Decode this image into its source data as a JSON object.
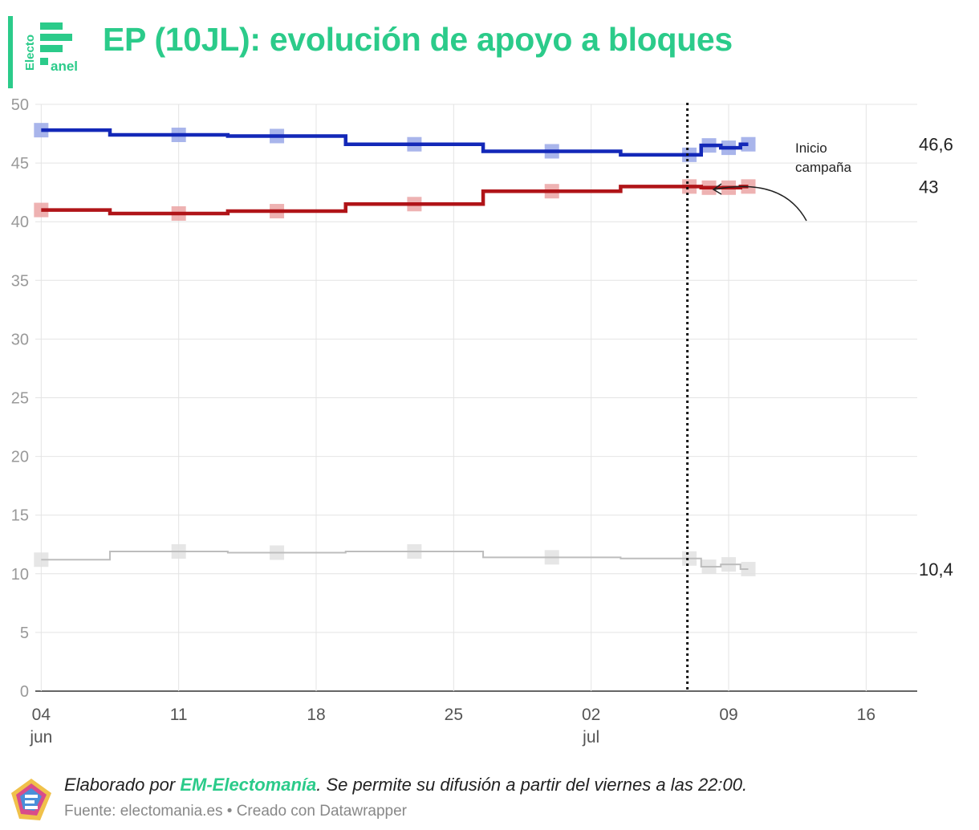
{
  "header": {
    "title": "EP (10JL): evolución de apoyo a bloques",
    "logo_text_top": "Electo",
    "logo_text_bottom": "anel"
  },
  "colors": {
    "accent": "#2bcb8a",
    "blue_line": "#1328b8",
    "blue_marker": "#9aa8e8",
    "red_line": "#b01418",
    "red_marker": "#eba4a4",
    "gray_line": "#bdbdbd",
    "gray_marker": "#e2e2e2"
  },
  "chart_data": {
    "type": "line",
    "title": "EP (10JL): evolución de apoyo a bloques",
    "xlabel": "",
    "ylabel": "",
    "ylim": [
      0,
      50
    ],
    "yticks": [
      0,
      5,
      10,
      15,
      20,
      25,
      30,
      35,
      40,
      45,
      50
    ],
    "x_domain_days": [
      -0.3,
      44.6
    ],
    "x_note": "x values are days since 4 jun",
    "xticks": [
      {
        "day": 0,
        "label": "04",
        "sublabel": "jun"
      },
      {
        "day": 7,
        "label": "11",
        "sublabel": ""
      },
      {
        "day": 14,
        "label": "18",
        "sublabel": ""
      },
      {
        "day": 21,
        "label": "25",
        "sublabel": ""
      },
      {
        "day": 28,
        "label": "02",
        "sublabel": "jul"
      },
      {
        "day": 35,
        "label": "09",
        "sublabel": ""
      },
      {
        "day": 42,
        "label": "16",
        "sublabel": ""
      }
    ],
    "series": [
      {
        "name": "blue",
        "end_label": "46,6",
        "steps": [
          [
            0,
            47.8
          ],
          [
            3.5,
            47.4
          ],
          [
            9.5,
            47.3
          ],
          [
            15.5,
            46.6
          ],
          [
            22.5,
            46.0
          ],
          [
            29.5,
            45.7
          ],
          [
            33.6,
            46.5
          ],
          [
            34.6,
            46.3
          ],
          [
            35.6,
            46.6
          ]
        ],
        "end_day": 36,
        "points": [
          [
            0,
            47.8
          ],
          [
            7,
            47.4
          ],
          [
            12,
            47.3
          ],
          [
            19,
            46.6
          ],
          [
            26,
            46.0
          ],
          [
            33,
            45.7
          ],
          [
            34,
            46.5
          ],
          [
            35,
            46.3
          ],
          [
            36,
            46.6
          ]
        ]
      },
      {
        "name": "red",
        "end_label": "43",
        "steps": [
          [
            0,
            41.0
          ],
          [
            3.5,
            40.7
          ],
          [
            9.5,
            40.9
          ],
          [
            15.5,
            41.5
          ],
          [
            22.5,
            42.6
          ],
          [
            29.5,
            43.0
          ],
          [
            33.6,
            42.9
          ],
          [
            34.6,
            42.9
          ],
          [
            35.6,
            43.0
          ]
        ],
        "end_day": 36,
        "points": [
          [
            0,
            41.0
          ],
          [
            7,
            40.7
          ],
          [
            12,
            40.9
          ],
          [
            19,
            41.5
          ],
          [
            26,
            42.6
          ],
          [
            33,
            43.0
          ],
          [
            34,
            42.9
          ],
          [
            35,
            42.9
          ],
          [
            36,
            43.0
          ]
        ]
      },
      {
        "name": "gray",
        "end_label": "10,4",
        "steps": [
          [
            0,
            11.2
          ],
          [
            3.5,
            11.9
          ],
          [
            9.5,
            11.8
          ],
          [
            15.5,
            11.9
          ],
          [
            22.5,
            11.4
          ],
          [
            29.5,
            11.3
          ],
          [
            33.6,
            10.6
          ],
          [
            34.6,
            10.8
          ],
          [
            35.6,
            10.4
          ]
        ],
        "end_day": 36,
        "points": [
          [
            0,
            11.2
          ],
          [
            7,
            11.9
          ],
          [
            12,
            11.8
          ],
          [
            19,
            11.9
          ],
          [
            26,
            11.4
          ],
          [
            33,
            11.3
          ],
          [
            34,
            10.6
          ],
          [
            35,
            10.8
          ],
          [
            36,
            10.4
          ]
        ]
      }
    ],
    "annotation": {
      "day": 32.9,
      "label_line1": "Inicio",
      "label_line2": "campaña"
    }
  },
  "footer": {
    "credit_prefix": "Elaborado por ",
    "credit_brand": "EM-Electomanía",
    "credit_suffix": ". Se permite su difusión a partir del viernes a las 22:00.",
    "source": "Fuente: electomania.es • Creado con Datawrapper"
  }
}
